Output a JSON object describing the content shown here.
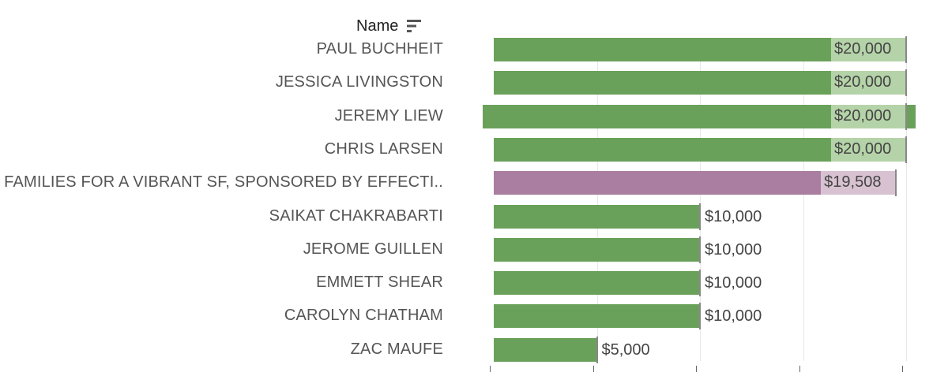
{
  "header": {
    "title": "Name",
    "sort_icon": "sort-descending-icon"
  },
  "colors": {
    "bar_green": "#6aa15a",
    "bar_green_highlight": "#b5d3a8",
    "bar_purple": "#a97ea0",
    "bar_purple_highlight": "#d8c2d1",
    "label": "#555555"
  },
  "chart_data": {
    "type": "bar",
    "orientation": "horizontal",
    "categories": [
      "PAUL BUCHHEIT",
      "JESSICA LIVINGSTON",
      "JEREMY LIEW",
      "CHRIS LARSEN",
      "FAMILIES FOR A VIBRANT SF, SPONSORED BY EFFECTI..",
      "SAIKAT CHAKRABARTI",
      "JEROME GUILLEN",
      "EMMETT SHEAR",
      "CAROLYN CHATHAM",
      "ZAC MAUFE"
    ],
    "values": [
      20000,
      20000,
      20000,
      20000,
      19508,
      10000,
      10000,
      10000,
      10000,
      5000
    ],
    "value_labels": [
      "$20,000",
      "$20,000",
      "$20,000",
      "$20,000",
      "$19,508",
      "$10,000",
      "$10,000",
      "$10,000",
      "$10,000",
      "$5,000"
    ],
    "bar_colors": [
      "green",
      "green",
      "green",
      "green",
      "purple",
      "green",
      "green",
      "green",
      "green",
      "green"
    ],
    "xlim": [
      0,
      20000
    ],
    "gridlines": true,
    "title": "",
    "xlabel": "",
    "ylabel": "Name"
  }
}
